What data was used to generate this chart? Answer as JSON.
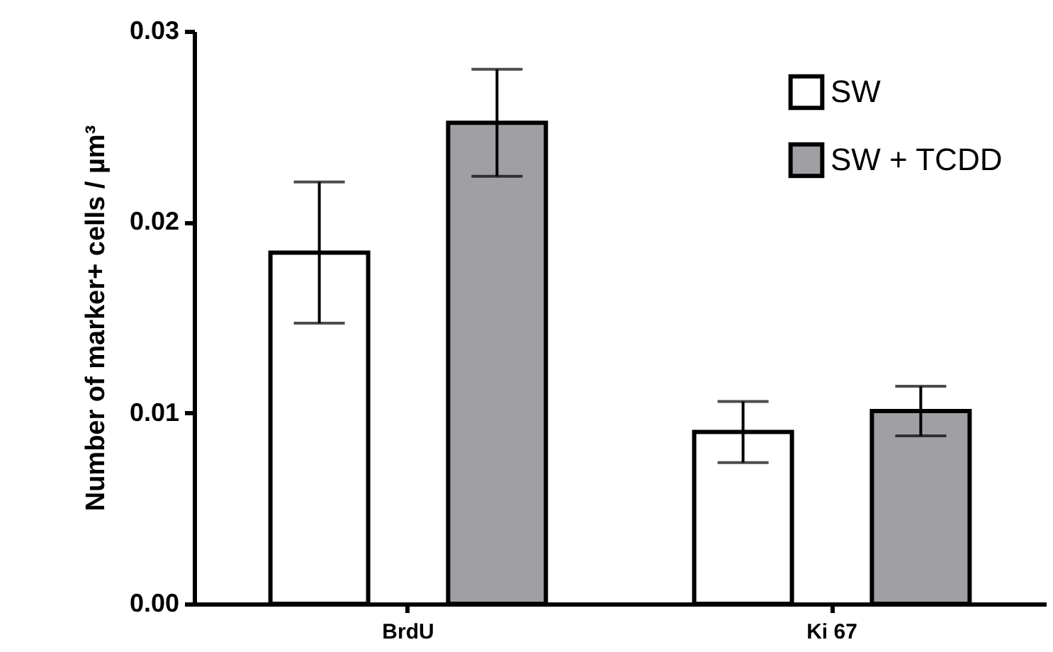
{
  "chart_data": {
    "type": "bar",
    "ylabel": "Number of marker+ cells / µm³",
    "categories": [
      "BrdU",
      "Ki 67"
    ],
    "series": [
      {
        "name": "SW",
        "color": "#ffffff",
        "values": [
          0.0184,
          0.009
        ],
        "errors": [
          0.0037,
          0.0016
        ]
      },
      {
        "name": "SW + TCDD",
        "color": "#a0a0a4",
        "values": [
          0.0252,
          0.0101
        ],
        "errors": [
          0.0028,
          0.0013
        ]
      }
    ],
    "ylim": [
      0,
      0.03
    ],
    "yticks": [
      {
        "value": 0,
        "label": "0.00"
      },
      0.01,
      0.02,
      0.03
    ],
    "grid": false,
    "legend": "top right"
  }
}
